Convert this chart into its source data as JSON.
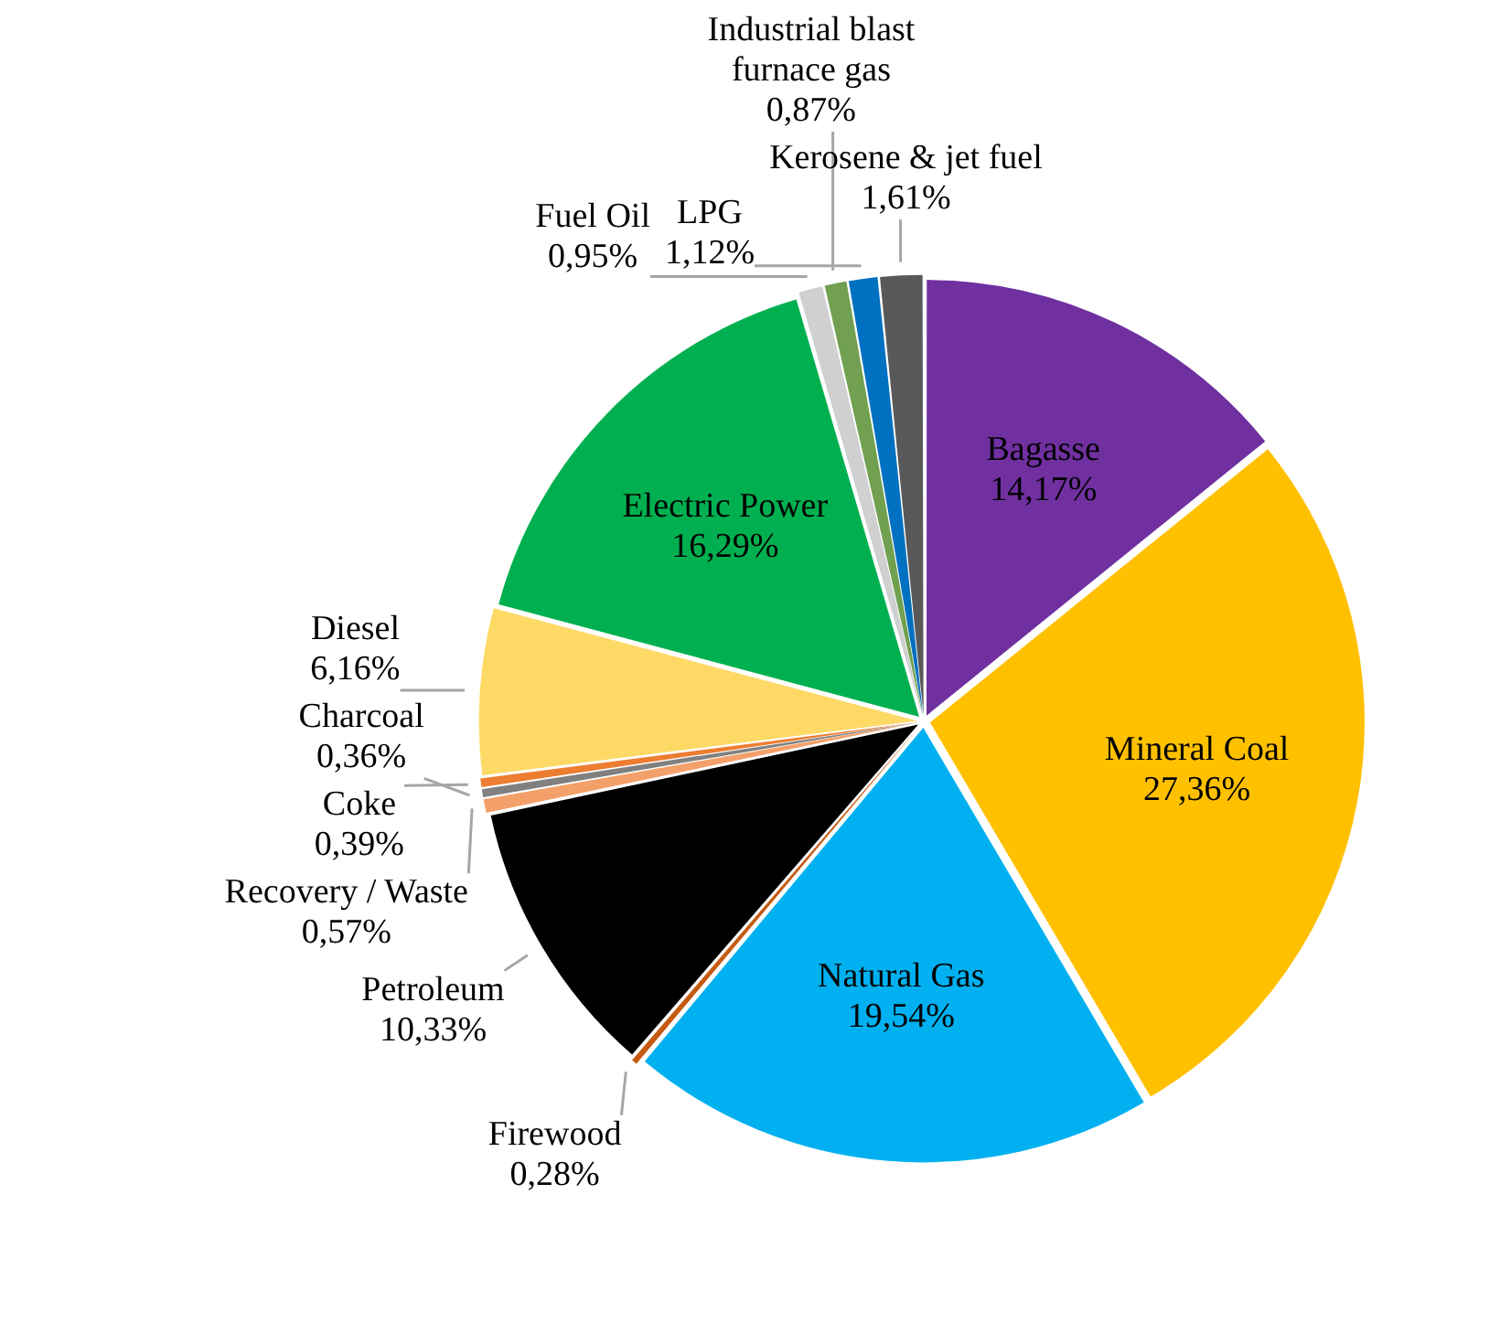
{
  "chart_data": {
    "type": "pie",
    "categories": [
      "Bagasse",
      "Mineral Coal",
      "Natural Gas",
      "Firewood",
      "Petroleum",
      "Recovery / Waste",
      "Charcoal",
      "Coke",
      "Diesel",
      "Electric Power",
      "Fuel Oil",
      "Industrial blast furnace gas",
      "LPG",
      "Kerosene & jet fuel"
    ],
    "values": [
      14.17,
      27.36,
      19.54,
      0.28,
      10.33,
      0.57,
      0.36,
      0.39,
      6.16,
      16.29,
      0.95,
      0.87,
      1.12,
      1.61
    ],
    "value_labels": [
      "14,17%",
      "27,36%",
      "19,54%",
      "0,28%",
      "10,33%",
      "0,57%",
      "0,36%",
      "0,39%",
      "6,16%",
      "16,29%",
      "0,95%",
      "0,87%",
      "1,12%",
      "1,61%"
    ],
    "colors": [
      "#7030a0",
      "#ffc000",
      "#00b0f0",
      "#c55a11",
      "#000000",
      "#f4a06a",
      "#808080",
      "#ed7d31",
      "#ffd966",
      "#00b050",
      "#d0d0d0",
      "#70a050",
      "#0070c0",
      "#595959"
    ],
    "legend": false
  }
}
